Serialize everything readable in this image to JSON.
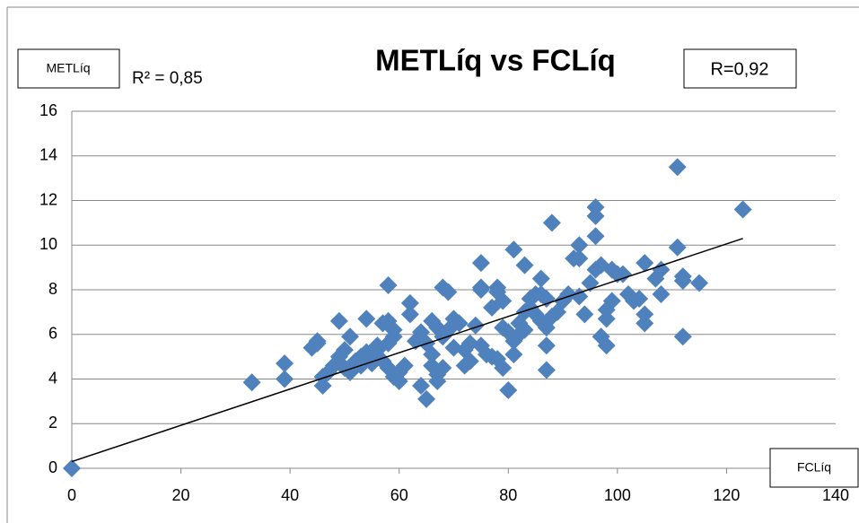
{
  "chart_data": {
    "type": "scatter",
    "title": "METLíq vs FCLíq",
    "y_label": "METLíq",
    "x_label": "FCLíq",
    "annotations": [
      "R² = 0,85",
      "R=0,92"
    ],
    "color": "#4f81bd",
    "xlim": [
      0,
      140
    ],
    "xticks": [
      0,
      20,
      40,
      60,
      80,
      100,
      120,
      140
    ],
    "ylim": [
      0,
      16
    ],
    "yticks": [
      0,
      2,
      4,
      6,
      8,
      10,
      12,
      14,
      16
    ],
    "grid": true,
    "trendline": {
      "x": [
        0,
        123
      ],
      "values": [
        0.3,
        10.3
      ]
    },
    "x": [
      0,
      33,
      39,
      39,
      44,
      45,
      45,
      46,
      46,
      47,
      48,
      49,
      49,
      50,
      50,
      51,
      51,
      52,
      53,
      53,
      54,
      54,
      55,
      55,
      56,
      56,
      57,
      57,
      58,
      58,
      58,
      58,
      59,
      59,
      59,
      60,
      60,
      61,
      62,
      62,
      63,
      64,
      64,
      65,
      65,
      66,
      66,
      66,
      67,
      67,
      67,
      68,
      68,
      68,
      69,
      69,
      70,
      70,
      71,
      72,
      72,
      73,
      73,
      74,
      75,
      75,
      75,
      75,
      76,
      77,
      77,
      78,
      78,
      78,
      79,
      79,
      79,
      80,
      80,
      81,
      81,
      81,
      82,
      82,
      83,
      83,
      83,
      84,
      84,
      85,
      85,
      86,
      86,
      86,
      87,
      87,
      87,
      87,
      88,
      88,
      89,
      90,
      91,
      92,
      93,
      93,
      93,
      94,
      95,
      96,
      96,
      96,
      96,
      97,
      97,
      98,
      98,
      98,
      99,
      99,
      100,
      101,
      102,
      103,
      104,
      105,
      105,
      105,
      107,
      108,
      108,
      111,
      111,
      112,
      112,
      112,
      115,
      123
    ],
    "values": [
      0,
      3.85,
      4.7,
      4.0,
      5.4,
      5.6,
      5.7,
      4.1,
      3.7,
      4.3,
      4.6,
      6.6,
      5.0,
      5.3,
      4.5,
      5.9,
      4.3,
      4.8,
      5.0,
      4.6,
      6.7,
      5.2,
      4.7,
      5.1,
      5.3,
      5.5,
      4.8,
      6.5,
      8.2,
      6.6,
      5.6,
      4.5,
      6.2,
      4.1,
      5.9,
      3.9,
      4.3,
      4.6,
      7.4,
      6.9,
      5.7,
      6.1,
      3.7,
      3.1,
      5.6,
      6.6,
      5.1,
      4.6,
      6.3,
      3.9,
      4.2,
      8.1,
      4.5,
      5.9,
      7.9,
      6.2,
      6.7,
      5.4,
      6.5,
      4.6,
      5.3,
      5.6,
      4.8,
      6.4,
      9.2,
      8.1,
      8.0,
      5.5,
      5.1,
      7.2,
      5.0,
      8.1,
      7.9,
      4.9,
      7.5,
      6.3,
      4.5,
      3.5,
      6.1,
      9.8,
      5.1,
      5.7,
      6.5,
      6.0,
      9.1,
      7.0,
      6.2,
      7.6,
      7.2,
      7.8,
      6.9,
      8.5,
      6.6,
      7.8,
      5.5,
      4.4,
      7.6,
      6.3,
      11.0,
      6.8,
      7.0,
      7.5,
      7.8,
      9.4,
      10.0,
      9.4,
      7.7,
      6.9,
      8.3,
      11.7,
      11.3,
      10.4,
      8.9,
      9.1,
      5.9,
      6.7,
      5.5,
      7.1,
      8.9,
      7.5,
      8.7,
      8.7,
      7.8,
      7.5,
      7.6,
      9.2,
      6.9,
      6.5,
      8.5,
      8.9,
      7.8,
      13.5,
      9.9,
      8.4,
      8.6,
      5.9,
      8.3,
      11.6
    ]
  }
}
